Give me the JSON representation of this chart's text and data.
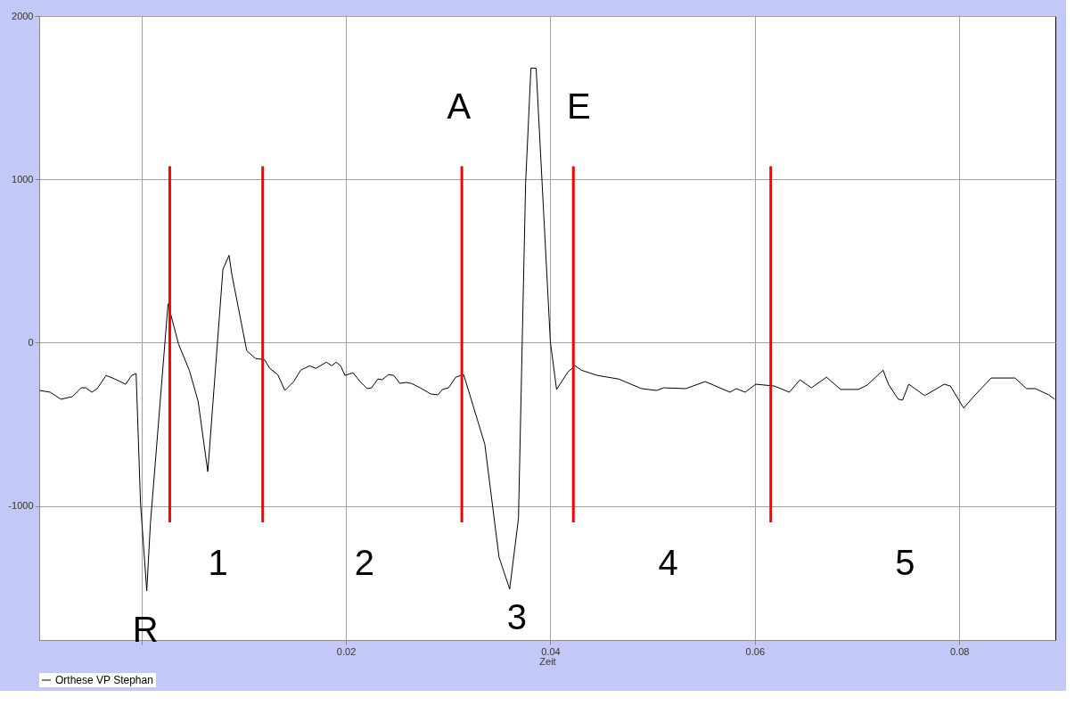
{
  "chart_data": {
    "type": "line",
    "xlabel": "Zeit",
    "xlim": [
      -0.01,
      0.0894
    ],
    "ylim": [
      -1820,
      2000
    ],
    "xticks": [
      {
        "value": 0,
        "label": null
      },
      0.02,
      0.04,
      0.06,
      0.08
    ],
    "yticks": [
      2000,
      1000,
      0,
      -1000
    ],
    "grid": true,
    "legend": "bottom",
    "line_style": "solid",
    "marker": "none",
    "series": [
      {
        "name": "Orthese VP Stephan",
        "color": "#000000",
        "x": [
          -0.00996,
          -0.00892,
          -0.00788,
          -0.00675,
          -0.00589,
          -0.00545,
          -0.00485,
          -0.00433,
          -0.00346,
          -0.0026,
          -0.00156,
          -0.00095,
          -0.00052,
          -9e-05,
          0.00052,
          0.00087,
          0.0026,
          0.00364,
          0.00468,
          0.00554,
          0.00649,
          0.00797,
          0.00857,
          0.00883,
          0.0103,
          0.01117,
          0.01203,
          0.01255,
          0.01333,
          0.01403,
          0.01489,
          0.01558,
          0.01645,
          0.01706,
          0.0181,
          0.01861,
          0.01905,
          0.01948,
          0.01991,
          0.02069,
          0.02139,
          0.02208,
          0.02251,
          0.02312,
          0.02355,
          0.02416,
          0.02468,
          0.02528,
          0.02589,
          0.02641,
          0.02727,
          0.02831,
          0.029,
          0.02944,
          0.03004,
          0.03074,
          0.03152,
          0.03359,
          0.03498,
          0.03602,
          0.03688,
          0.03758,
          0.0381,
          0.03861,
          0.04,
          0.04061,
          0.04173,
          0.04242,
          0.04303,
          0.04459,
          0.04667,
          0.04892,
          0.05039,
          0.05108,
          0.05325,
          0.05515,
          0.05758,
          0.05818,
          0.05905,
          0.06009,
          0.0619,
          0.06338,
          0.06442,
          0.06554,
          0.06701,
          0.0684,
          0.07013,
          0.071,
          0.07255,
          0.07307,
          0.07403,
          0.07446,
          0.07506,
          0.07662,
          0.07853,
          0.07913,
          0.08043,
          0.08156,
          0.08312,
          0.08545,
          0.08658,
          0.08745,
          0.08874,
          0.08935
        ],
        "values": [
          -292,
          -303,
          -346,
          -330,
          -276,
          -276,
          -303,
          -281,
          -200,
          -222,
          -254,
          -200,
          -189,
          -984,
          -1519,
          -1113,
          238,
          -11,
          -168,
          -357,
          -789,
          449,
          535,
          422,
          -49,
          -97,
          -103,
          -157,
          -195,
          -292,
          -238,
          -168,
          -141,
          -157,
          -119,
          -141,
          -119,
          -141,
          -200,
          -184,
          -238,
          -281,
          -276,
          -222,
          -227,
          -195,
          -200,
          -249,
          -243,
          -249,
          -276,
          -314,
          -319,
          -286,
          -276,
          -211,
          -195,
          -622,
          -1313,
          -1508,
          -1076,
          978,
          1681,
          1681,
          5,
          -286,
          -178,
          -141,
          -168,
          -200,
          -222,
          -281,
          -292,
          -276,
          -281,
          -238,
          -303,
          -281,
          -303,
          -254,
          -265,
          -303,
          -227,
          -276,
          -211,
          -286,
          -286,
          -259,
          -168,
          -254,
          -346,
          -351,
          -254,
          -324,
          -254,
          -265,
          -400,
          -319,
          -216,
          -216,
          -281,
          -281,
          -319,
          -346
        ]
      },
      {
        "color": "#ff0000",
        "x": [
          0.00277,
          0.00277
        ],
        "values": [
          -1100,
          1080
        ]
      },
      {
        "color": "#ff0000",
        "x": [
          0.01186,
          0.01186
        ],
        "values": [
          -1100,
          1080
        ]
      },
      {
        "color": "#ff0000",
        "x": [
          0.03134,
          0.03134
        ],
        "values": [
          -1100,
          1080
        ]
      },
      {
        "color": "#ff0000",
        "x": [
          0.04225,
          0.04225
        ],
        "values": [
          -1100,
          1080
        ]
      },
      {
        "color": "#ff0000",
        "x": [
          0.06156,
          0.06156
        ],
        "values": [
          -1100,
          1080
        ]
      }
    ],
    "annotations": [
      "R",
      "1",
      "2",
      "A",
      "3",
      "E",
      "4",
      "5"
    ]
  }
}
